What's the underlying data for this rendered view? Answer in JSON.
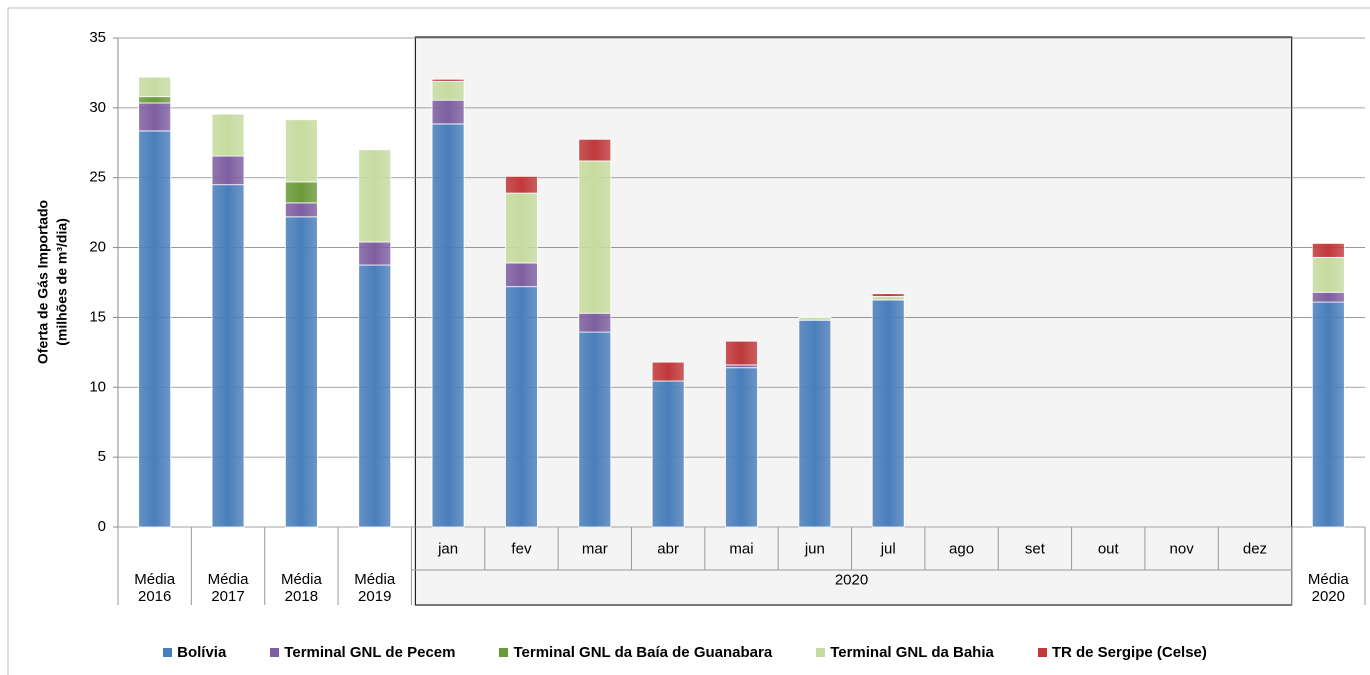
{
  "chart_data": {
    "type": "stacked_bar",
    "ylabel": [
      "Oferta de Gás Importado",
      "(milhões de m³/dia)"
    ],
    "categories": [
      "Média 2016",
      "Média 2017",
      "Média 2018",
      "Média 2019",
      "jan",
      "fev",
      "mar",
      "abr",
      "mai",
      "jun",
      "jul",
      "ago",
      "set",
      "out",
      "nov",
      "dez",
      "Média 2020"
    ],
    "group": {
      "label": "2020",
      "first": 4,
      "count": 12
    },
    "series": [
      {
        "name": "Bolívia",
        "color": "#4a7ebb",
        "values": [
          28.35,
          24.5,
          22.2,
          18.75,
          28.85,
          17.2,
          13.95,
          10.45,
          11.4,
          14.8,
          16.25,
          0,
          0,
          0,
          0,
          0,
          16.1
        ]
      },
      {
        "name": "Terminal GNL de Pecem",
        "color": "#7e5fa0",
        "values": [
          2.0,
          2.05,
          1.0,
          1.65,
          1.7,
          1.7,
          1.35,
          0,
          0.2,
          0,
          0,
          0,
          0,
          0,
          0,
          0,
          0.7
        ]
      },
      {
        "name": "Terminal GNL da Baía de Guanabara",
        "color": "#6b9a3a",
        "values": [
          0.45,
          0,
          1.5,
          0,
          0,
          0,
          0,
          0,
          0,
          0,
          0,
          0,
          0,
          0,
          0,
          0,
          0
        ]
      },
      {
        "name": "Terminal GNL da Bahia",
        "color": "#c6dba0",
        "values": [
          1.4,
          3.0,
          4.45,
          6.6,
          1.35,
          5.0,
          10.9,
          0,
          0,
          0.2,
          0.25,
          0,
          0,
          0,
          0,
          0,
          2.5
        ]
      },
      {
        "name": "TR de Sergipe (Celse)",
        "color": "#c0393b",
        "values": [
          0,
          0,
          0,
          0,
          0.15,
          1.2,
          1.55,
          1.35,
          1.7,
          0,
          0.2,
          0,
          0,
          0,
          0,
          0,
          1.0
        ]
      }
    ],
    "ylim": [
      0,
      35
    ],
    "yticks": [
      0,
      5,
      10,
      15,
      20,
      25,
      30,
      35
    ],
    "grid": true,
    "legend": "bottom"
  }
}
